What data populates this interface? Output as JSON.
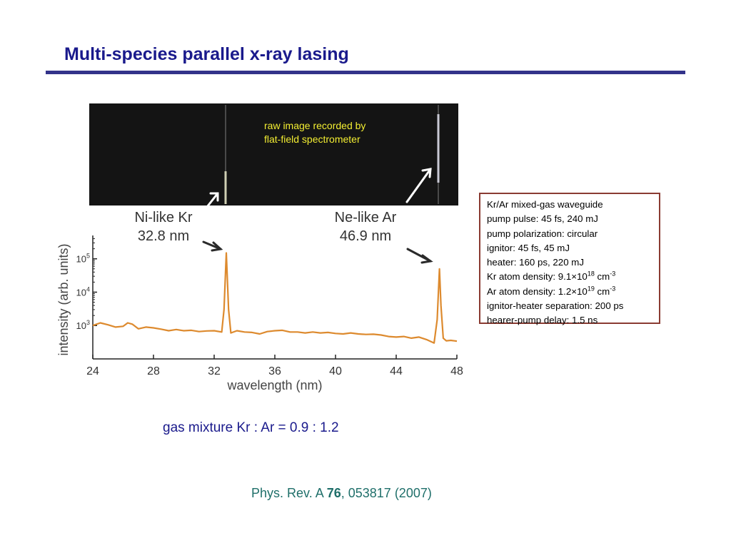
{
  "slide": {
    "title": "Multi-species parallel x-ray lasing",
    "raw_caption_line1": "raw image recorded by",
    "raw_caption_line2": "flat-field spectrometer",
    "gas_mixture": "gas mixture Kr : Ar = 0.9 : 1.2",
    "reference": {
      "journal": "Phys. Rev. A ",
      "volume": "76",
      "rest": ", 053817 (2007)"
    },
    "info_box": {
      "line1": "Kr/Ar mixed-gas waveguide",
      "line2": "pump pulse: 45 fs, 240 mJ",
      "line3": "pump polarization: circular",
      "line4": "ignitor: 45 fs, 45 mJ",
      "line5": "heater: 160 ps, 220 mJ",
      "kr_density_label": "Kr atom density: 9.1",
      "kr_density_exp": "18",
      "ar_density_label": "Ar atom density: 1.2",
      "ar_density_exp": "19",
      "times_sign": "×",
      "ten": "10",
      "unit": " cm",
      "unit_exp": "-3",
      "line8": "ignitor-heater separation: 200 ps",
      "line9": "hearer-pump delay: 1.5 ns"
    },
    "colors": {
      "title": "#1a1a8c",
      "rule": "#33338a",
      "trace": "#dd8a2e",
      "raw_background": "#141414",
      "caption": "#f3ee32",
      "box_border": "#8a3b32",
      "reference": "#1f6f6a"
    }
  },
  "chart_data": {
    "type": "line",
    "xlabel": "wavelength (nm)",
    "ylabel": "intensity (arb. units)",
    "xlim": [
      24,
      48
    ],
    "ylim": [
      100,
      500000
    ],
    "y_scale": "log",
    "x_ticks": [
      24,
      28,
      32,
      36,
      40,
      44,
      48
    ],
    "y_ticks": [
      {
        "value": 1000,
        "base": "10",
        "exp": "3"
      },
      {
        "value": 10000,
        "base": "10",
        "exp": "4"
      },
      {
        "value": 100000,
        "base": "10",
        "exp": "5"
      }
    ],
    "annotations": [
      {
        "line1": "Ni-like Kr",
        "line2": "32.8 nm"
      },
      {
        "line1": "Ne-like Ar",
        "line2": "46.9 nm"
      }
    ],
    "grid": false,
    "series": [
      {
        "x": [
          24.0,
          24.5,
          25.0,
          25.5,
          26.0,
          26.3,
          26.6,
          27.0,
          27.5,
          28.0,
          28.5,
          29.0,
          29.5,
          30.0,
          30.5,
          31.0,
          31.5,
          32.0,
          32.5,
          32.65,
          32.8,
          32.95,
          33.1,
          33.5,
          34.0,
          34.5,
          35.0,
          35.5,
          36.0,
          36.5,
          37.0,
          37.5,
          38.0,
          38.5,
          39.0,
          39.5,
          40.0,
          40.5,
          41.0,
          41.5,
          42.0,
          42.5,
          43.0,
          43.5,
          44.0,
          44.5,
          45.0,
          45.5,
          46.0,
          46.5,
          46.7,
          46.85,
          46.95,
          47.1,
          47.3,
          47.6,
          48.0
        ],
        "y": [
          1000,
          1200,
          1050,
          900,
          950,
          1200,
          1100,
          800,
          900,
          850,
          780,
          700,
          760,
          700,
          720,
          660,
          690,
          700,
          640,
          3000,
          150000,
          3000,
          600,
          700,
          640,
          620,
          560,
          660,
          700,
          720,
          640,
          640,
          600,
          640,
          600,
          620,
          580,
          560,
          600,
          560,
          540,
          550,
          520,
          470,
          450,
          470,
          420,
          450,
          380,
          300,
          1500,
          50000,
          4000,
          420,
          350,
          360,
          340
        ]
      }
    ]
  }
}
